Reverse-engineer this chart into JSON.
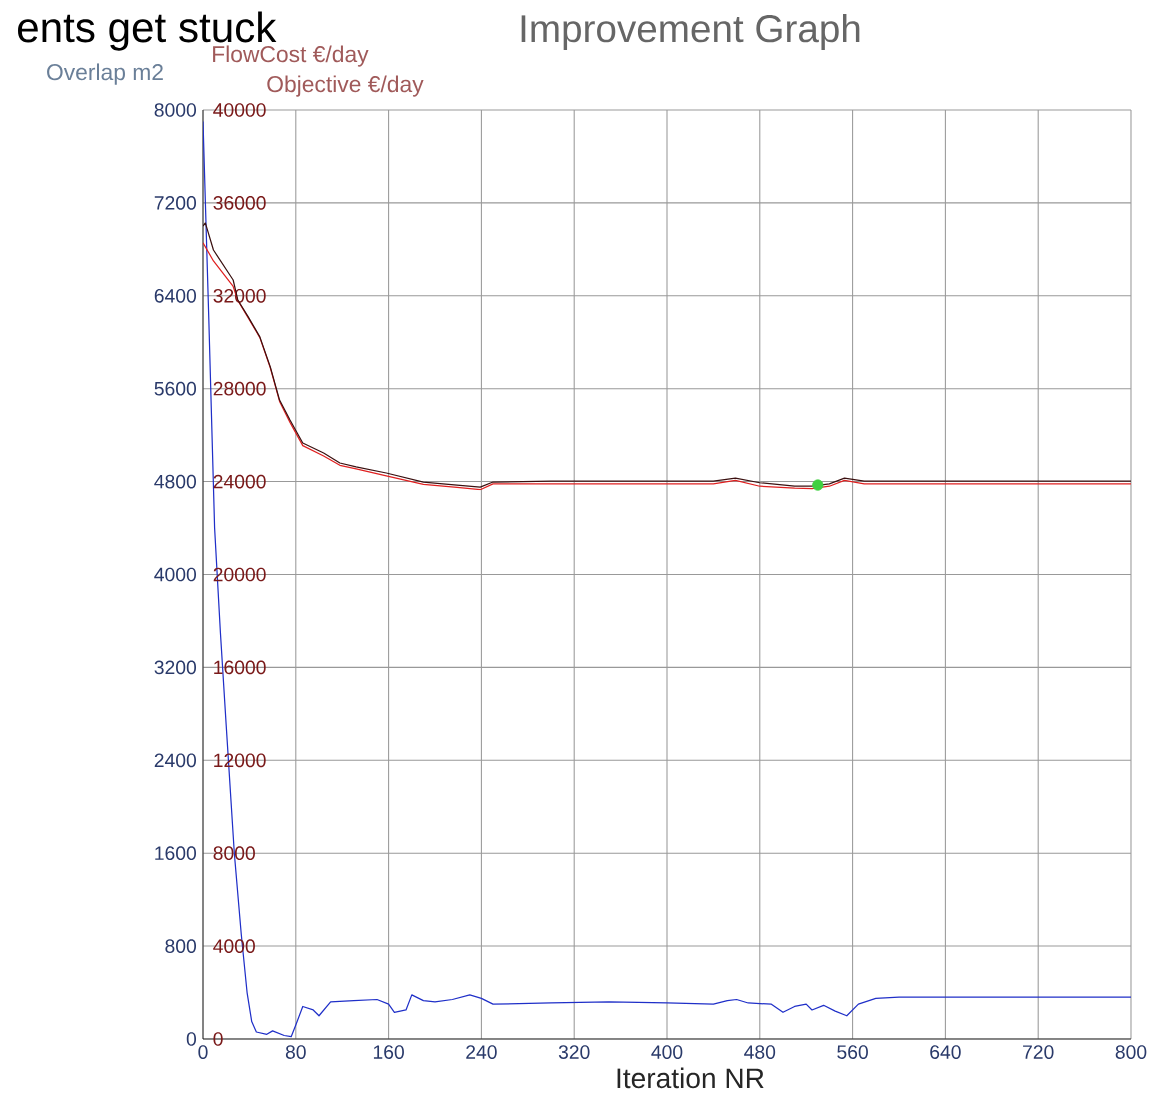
{
  "chart_data": {
    "type": "line",
    "title": "Improvement Graph",
    "xlabel": "Iteration NR",
    "ylabel": "Overlap m2",
    "y2label": "FlowCost €/day",
    "annotations": [
      "Objective  €/day",
      "ents get stuck"
    ],
    "xlim": [
      0,
      800
    ],
    "xticks": [
      0,
      80,
      160,
      240,
      320,
      400,
      480,
      560,
      640,
      720,
      800
    ],
    "ylim": [
      0,
      8000
    ],
    "yticks": [
      0,
      800,
      1600,
      2400,
      3200,
      4000,
      4800,
      5600,
      6400,
      7200,
      8000
    ],
    "y2lim": [
      0,
      40000
    ],
    "y2ticks": [
      0,
      4000,
      8000,
      12000,
      16000,
      20000,
      24000,
      28000,
      32000,
      36000,
      40000
    ],
    "grid": true,
    "series": [
      {
        "color": "#1f2fc8",
        "x": [
          0,
          5,
          10,
          15,
          20,
          27,
          33,
          38,
          42,
          46,
          55,
          60,
          70,
          76,
          80,
          86,
          95,
          100,
          110,
          130,
          150,
          160,
          165,
          175,
          180,
          190,
          200,
          215,
          230,
          240,
          250,
          300,
          350,
          400,
          440,
          452,
          460,
          470,
          490,
          500,
          510,
          520,
          525,
          535,
          545,
          555,
          565,
          580,
          600,
          700,
          800
        ],
        "values": [
          7900,
          6200,
          4400,
          3500,
          2700,
          1600,
          900,
          400,
          150,
          60,
          40,
          70,
          30,
          20,
          120,
          280,
          250,
          200,
          320,
          330,
          340,
          300,
          230,
          250,
          380,
          330,
          320,
          340,
          380,
          350,
          300,
          310,
          320,
          310,
          300,
          330,
          340,
          310,
          300,
          230,
          280,
          300,
          250,
          290,
          240,
          200,
          300,
          350,
          360,
          360,
          360
        ]
      },
      {
        "color": "#e02020",
        "axis": "y2",
        "x": [
          0,
          9,
          26,
          30,
          39,
          49,
          58,
          66,
          75,
          86,
          104,
          118,
          132,
          158,
          190,
          219,
          239,
          250,
          300,
          400,
          440,
          459,
          480,
          510,
          525,
          540,
          553,
          570,
          650,
          800
        ],
        "values": [
          34280,
          33500,
          32400,
          31800,
          31050,
          30200,
          28900,
          27450,
          26550,
          25550,
          25100,
          24700,
          24550,
          24250,
          23880,
          23750,
          23650,
          23900,
          23900,
          23900,
          23900,
          24050,
          23800,
          23720,
          23700,
          23800,
          24050,
          23900,
          23900,
          23900
        ]
      },
      {
        "color": "#3a1010",
        "axis": "y2",
        "x": [
          0,
          2,
          9,
          26,
          30,
          39,
          49,
          58,
          66,
          75,
          86,
          104,
          118,
          132,
          158,
          190,
          219,
          239,
          250,
          300,
          400,
          440,
          459,
          480,
          510,
          525,
          540,
          553,
          570,
          650,
          800
        ],
        "values": [
          35000,
          35140,
          33970,
          32680,
          31820,
          31090,
          30230,
          28940,
          27510,
          26650,
          25660,
          25230,
          24800,
          24630,
          24370,
          23980,
          23850,
          23760,
          23980,
          24020,
          24020,
          24020,
          24150,
          23950,
          23800,
          23800,
          23900,
          24150,
          24020,
          24020,
          24020
        ]
      },
      {
        "type": "scatter",
        "color": "#40d040",
        "axis": "y2",
        "x": [
          530
        ],
        "values": [
          23850
        ]
      }
    ]
  }
}
